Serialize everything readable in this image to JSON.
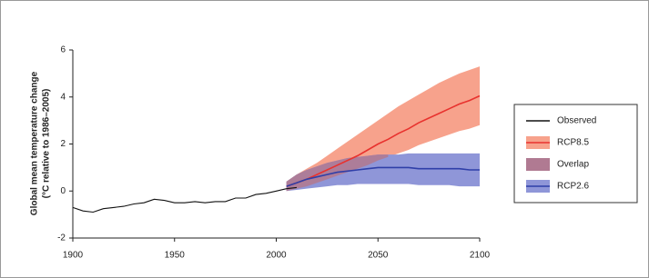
{
  "chart_data": {
    "type": "band-line",
    "ylabel": "Global mean temperature change",
    "ylabel2": "(°C relative to 1986–2005)",
    "xlim": [
      1900,
      2100
    ],
    "xticks": [
      1900,
      1950,
      2000,
      2050,
      2100
    ],
    "ylim": [
      -2,
      6
    ],
    "yticks": [
      -2,
      0,
      2,
      4,
      6
    ],
    "x": [
      1900,
      1905,
      1910,
      1915,
      1920,
      1925,
      1930,
      1935,
      1940,
      1945,
      1950,
      1955,
      1960,
      1965,
      1970,
      1975,
      1980,
      1985,
      1990,
      1995,
      2000,
      2005,
      2010,
      2015,
      2020,
      2025,
      2030,
      2035,
      2040,
      2045,
      2050,
      2055,
      2060,
      2065,
      2070,
      2075,
      2080,
      2085,
      2090,
      2095,
      2100
    ],
    "series": [
      {
        "name": "Observed",
        "color": "#111111",
        "values": [
          -0.7,
          -0.85,
          -0.9,
          -0.75,
          -0.7,
          -0.65,
          -0.55,
          -0.5,
          -0.35,
          -0.4,
          -0.5,
          -0.5,
          -0.45,
          -0.5,
          -0.45,
          -0.45,
          -0.3,
          -0.3,
          -0.15,
          -0.1,
          0.0,
          0.1,
          0.15,
          null,
          null,
          null,
          null,
          null,
          null,
          null,
          null,
          null,
          null,
          null,
          null,
          null,
          null,
          null,
          null,
          null,
          null
        ]
      },
      {
        "name": "RCP8.5",
        "color": "#e8322e",
        "band_color": "#f7a28c",
        "values": [
          null,
          null,
          null,
          null,
          null,
          null,
          null,
          null,
          null,
          null,
          null,
          null,
          null,
          null,
          null,
          null,
          null,
          null,
          null,
          null,
          null,
          0.2,
          0.35,
          0.5,
          0.7,
          0.9,
          1.1,
          1.3,
          1.5,
          1.75,
          2.0,
          2.2,
          2.45,
          2.65,
          2.9,
          3.1,
          3.3,
          3.5,
          3.7,
          3.85,
          4.05
        ],
        "upper": [
          null,
          null,
          null,
          null,
          null,
          null,
          null,
          null,
          null,
          null,
          null,
          null,
          null,
          null,
          null,
          null,
          null,
          null,
          null,
          null,
          null,
          0.4,
          0.7,
          0.95,
          1.2,
          1.5,
          1.8,
          2.1,
          2.4,
          2.7,
          3.0,
          3.3,
          3.6,
          3.85,
          4.1,
          4.35,
          4.6,
          4.8,
          5.0,
          5.15,
          5.3
        ],
        "lower": [
          null,
          null,
          null,
          null,
          null,
          null,
          null,
          null,
          null,
          null,
          null,
          null,
          null,
          null,
          null,
          null,
          null,
          null,
          null,
          null,
          null,
          0.0,
          0.1,
          0.2,
          0.35,
          0.5,
          0.65,
          0.8,
          0.95,
          1.1,
          1.3,
          1.45,
          1.6,
          1.75,
          1.95,
          2.1,
          2.25,
          2.4,
          2.55,
          2.65,
          2.8
        ]
      },
      {
        "name": "RCP2.6",
        "color": "#2f3fa8",
        "band_color": "#8f96d8",
        "values": [
          null,
          null,
          null,
          null,
          null,
          null,
          null,
          null,
          null,
          null,
          null,
          null,
          null,
          null,
          null,
          null,
          null,
          null,
          null,
          null,
          null,
          0.2,
          0.35,
          0.5,
          0.6,
          0.7,
          0.8,
          0.85,
          0.9,
          0.95,
          1.0,
          1.0,
          1.0,
          1.0,
          0.95,
          0.95,
          0.95,
          0.95,
          0.95,
          0.9,
          0.9
        ],
        "upper": [
          null,
          null,
          null,
          null,
          null,
          null,
          null,
          null,
          null,
          null,
          null,
          null,
          null,
          null,
          null,
          null,
          null,
          null,
          null,
          null,
          null,
          0.4,
          0.7,
          0.9,
          1.05,
          1.2,
          1.3,
          1.4,
          1.45,
          1.5,
          1.55,
          1.55,
          1.55,
          1.6,
          1.6,
          1.6,
          1.6,
          1.6,
          1.6,
          1.6,
          1.6
        ],
        "lower": [
          null,
          null,
          null,
          null,
          null,
          null,
          null,
          null,
          null,
          null,
          null,
          null,
          null,
          null,
          null,
          null,
          null,
          null,
          null,
          null,
          null,
          0.0,
          0.05,
          0.1,
          0.15,
          0.2,
          0.25,
          0.25,
          0.3,
          0.3,
          0.3,
          0.3,
          0.3,
          0.3,
          0.25,
          0.25,
          0.25,
          0.25,
          0.2,
          0.2,
          0.2
        ]
      }
    ],
    "overlap": {
      "name": "Overlap",
      "color": "#b07a92"
    }
  }
}
